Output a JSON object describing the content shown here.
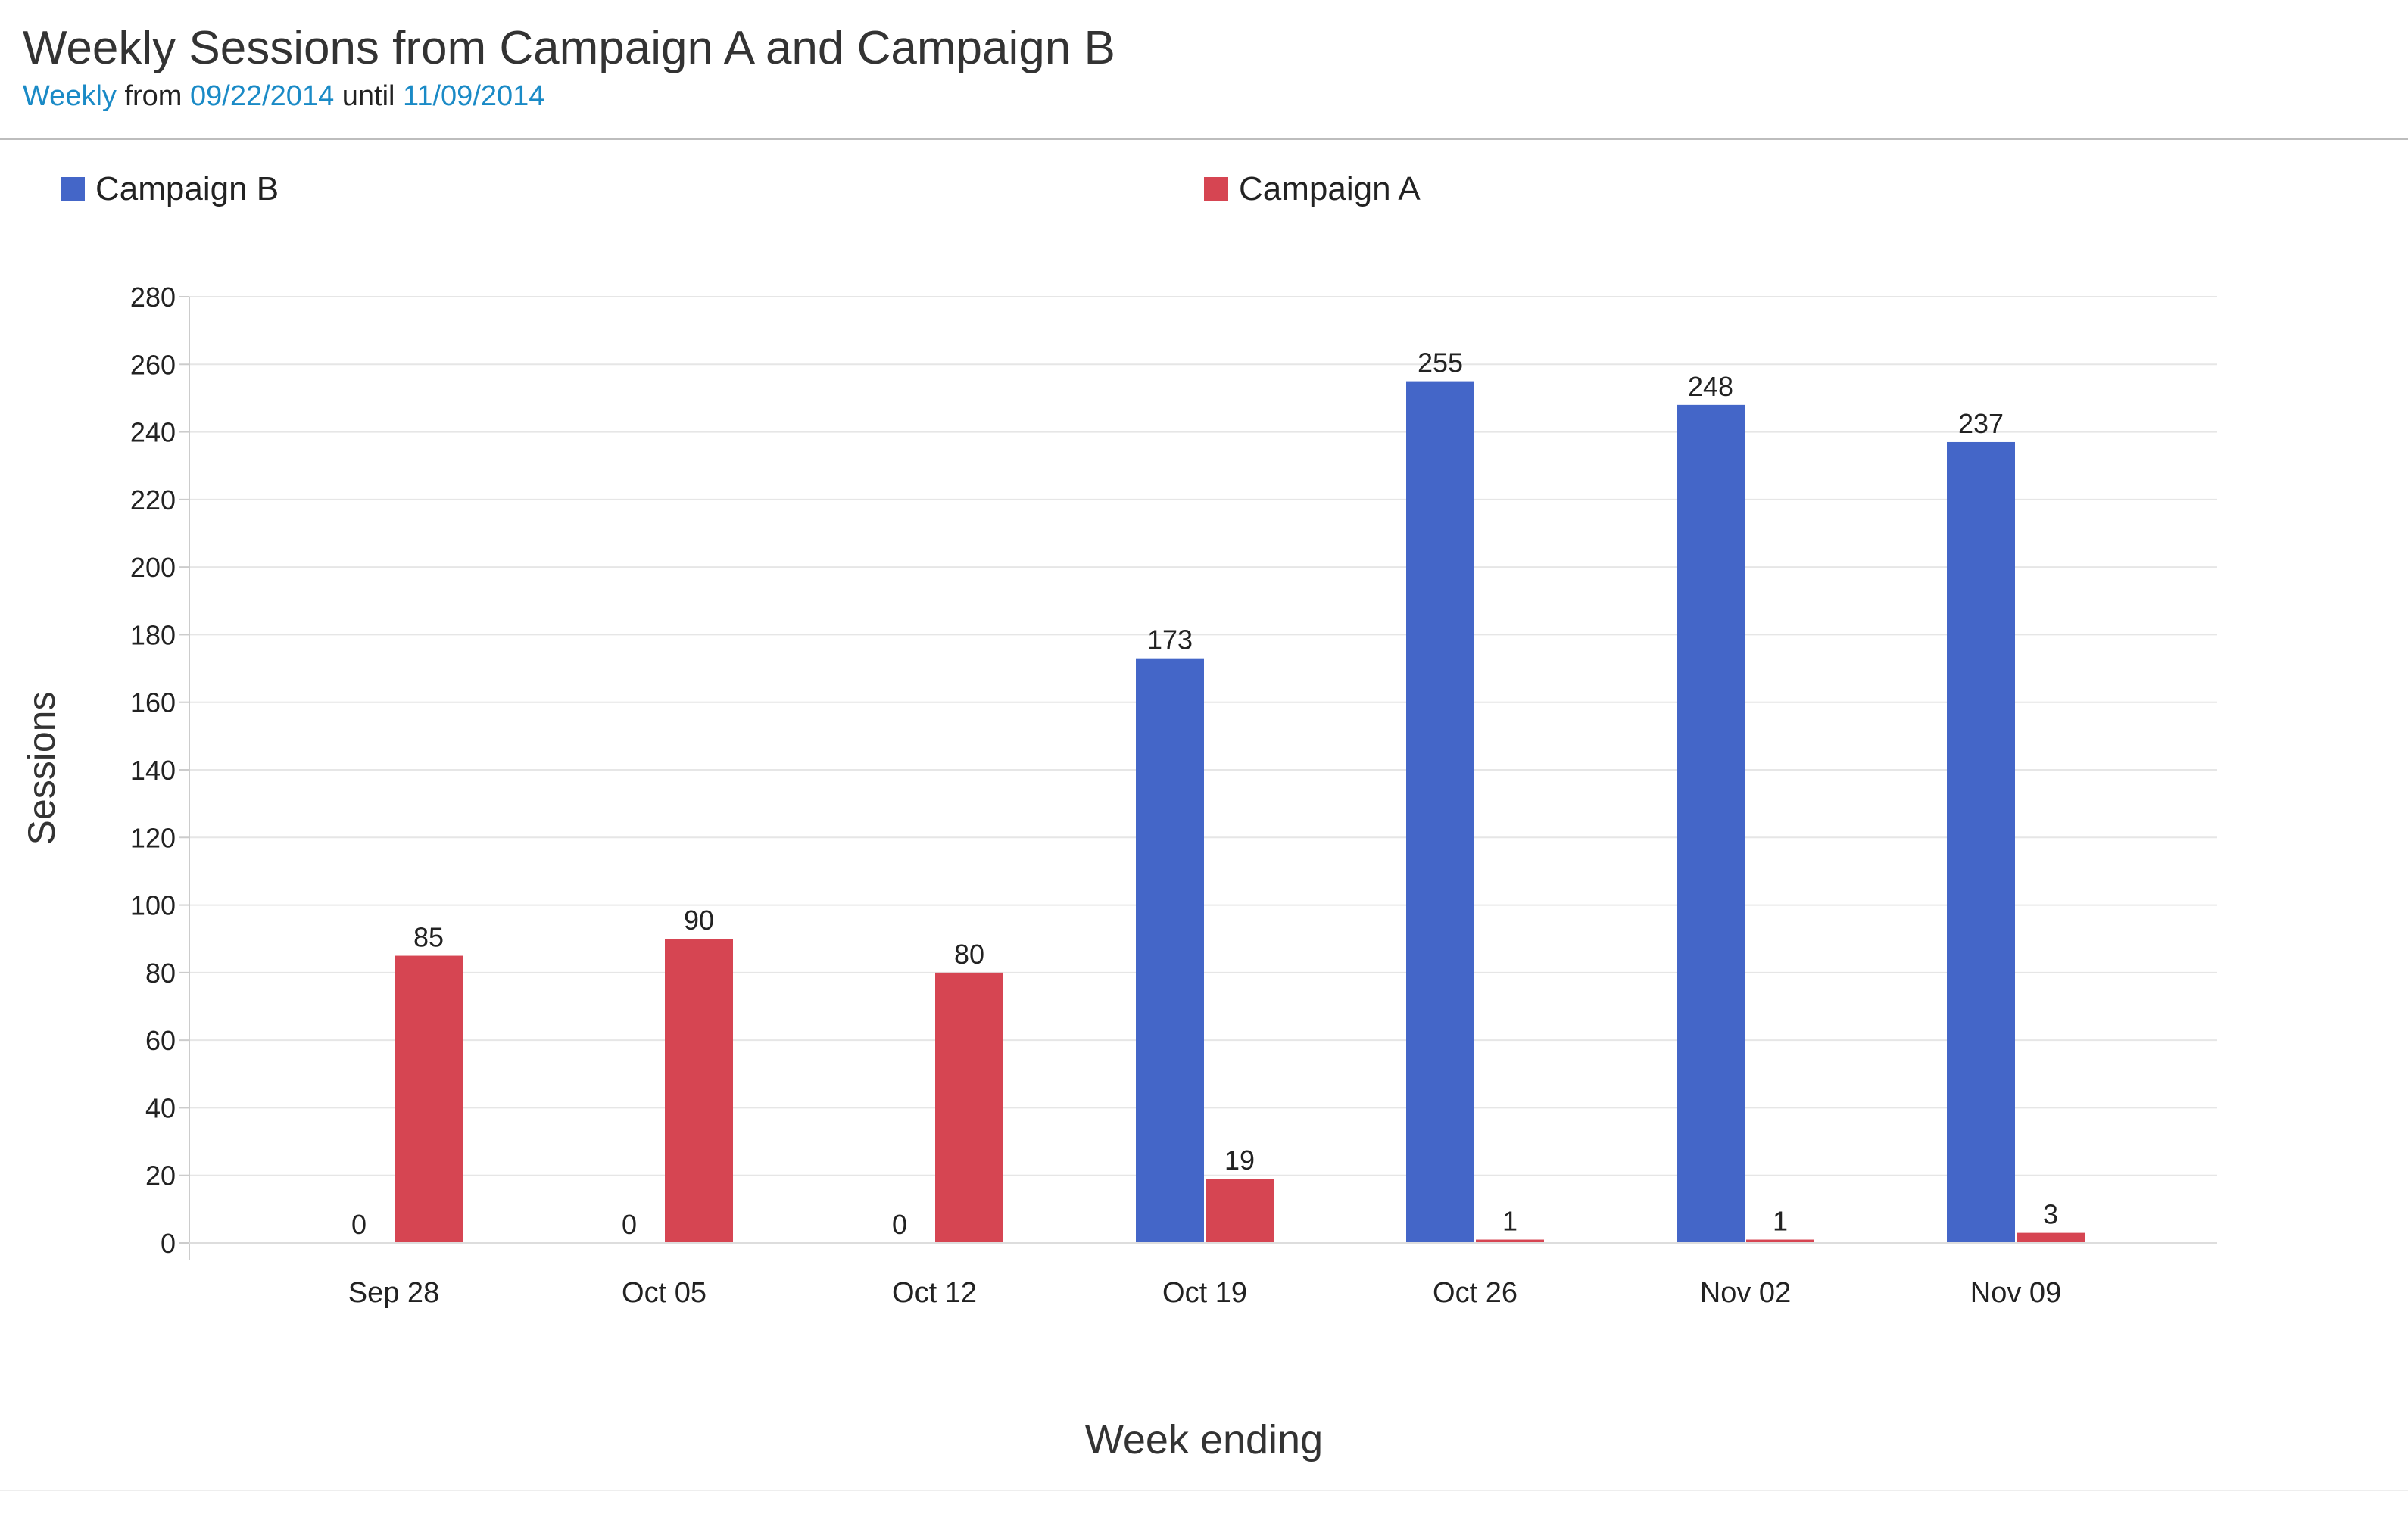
{
  "header": {
    "title": "Weekly Sessions from Campaign A and Campaign B",
    "subtitle": {
      "interval": "Weekly",
      "from_word": "from",
      "start_date": "09/22/2014",
      "until_word": "until",
      "end_date": "11/09/2014"
    }
  },
  "colors": {
    "campaign_b": "#4466c8",
    "campaign_a": "#d64552",
    "link": "#1a8ac6",
    "grid": "#e6e6e6"
  },
  "chart_data": {
    "type": "bar",
    "title": "",
    "xlabel": "Week ending",
    "ylabel": "Sessions",
    "categories": [
      "Sep 28",
      "Oct 05",
      "Oct 12",
      "Oct 19",
      "Oct 26",
      "Nov 02",
      "Nov 09"
    ],
    "series": [
      {
        "name": "Campaign B",
        "color": "#4466c8",
        "values": [
          0,
          0,
          0,
          173,
          255,
          248,
          237
        ]
      },
      {
        "name": "Campaign A",
        "color": "#d64552",
        "values": [
          85,
          90,
          80,
          19,
          1,
          1,
          3
        ]
      }
    ],
    "ylim": [
      0,
      280
    ],
    "yticks": [
      0,
      20,
      40,
      60,
      80,
      100,
      120,
      140,
      160,
      180,
      200,
      220,
      240,
      260,
      280
    ],
    "grid": true,
    "legend_position": "top",
    "data_labels": true
  }
}
